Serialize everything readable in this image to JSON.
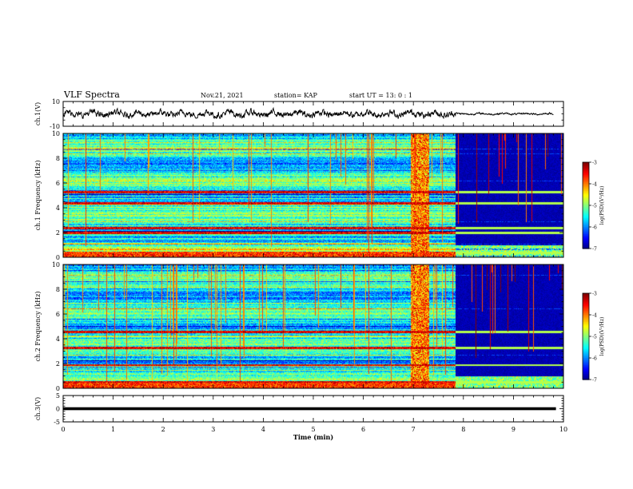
{
  "header": {
    "title": "VLF Spectra",
    "date": "Nov.21, 2021",
    "station": "station= KAP",
    "start": "start  UT =   13: 0  : 1"
  },
  "chart_data": [
    {
      "type": "line",
      "name": "ch1-waveform",
      "ylabel": "ch.1(V)",
      "ylim": [
        -10,
        10
      ],
      "yticks": [
        10,
        -10
      ],
      "xlim": [
        0,
        10
      ],
      "approx_amplitude_v": 3.5,
      "late_amplitude_v": 1.0
    },
    {
      "type": "heatmap",
      "name": "ch1-spectrogram",
      "ylabel": "ch.1 Frequency (kHz)",
      "ylim": [
        0,
        10
      ],
      "yticks": [
        0,
        2,
        4,
        6,
        8,
        10
      ],
      "xlim": [
        0,
        10
      ],
      "colorbar": {
        "label": "log(PSD)(V²/Hz)",
        "ticks": [
          -3,
          -4,
          -5,
          -6,
          -7
        ],
        "range": [
          -7,
          -3
        ]
      },
      "quiet_start_min": 7.85,
      "burst_interval_min": [
        6.95,
        7.3
      ],
      "strong_bands_khz": [
        5.3,
        4.4,
        2.4,
        2.0,
        0.4
      ]
    },
    {
      "type": "heatmap",
      "name": "ch2-spectrogram",
      "ylabel": "ch.2 Frequency (kHz)",
      "ylim": [
        0,
        10
      ],
      "yticks": [
        0,
        2,
        4,
        6,
        8,
        10
      ],
      "xlim": [
        0,
        10
      ],
      "colorbar": {
        "label": "log(PSD)(V²/Hz)",
        "ticks": [
          -3,
          -4,
          -5,
          -6,
          -7
        ],
        "range": [
          -7,
          -3
        ]
      },
      "quiet_start_min": 7.85,
      "burst_interval_min": [
        6.95,
        7.3
      ],
      "strong_bands_khz": [
        4.6,
        3.3,
        1.9,
        0.5
      ]
    },
    {
      "type": "line",
      "name": "ch3-trace",
      "ylabel": "ch.3(V)",
      "ylim": [
        -5,
        5
      ],
      "yticks": [
        5,
        0,
        -5
      ],
      "xlim": [
        0,
        10
      ],
      "xticks": [
        0,
        1,
        2,
        3,
        4,
        5,
        6,
        7,
        8,
        9,
        10
      ],
      "xlabel": "Time  (min)",
      "level_v": 0,
      "band_thickness_v": 1.1
    }
  ],
  "colors": {
    "axes": "#000000",
    "trace": "#000000",
    "quiet_bg": "#00002e"
  }
}
